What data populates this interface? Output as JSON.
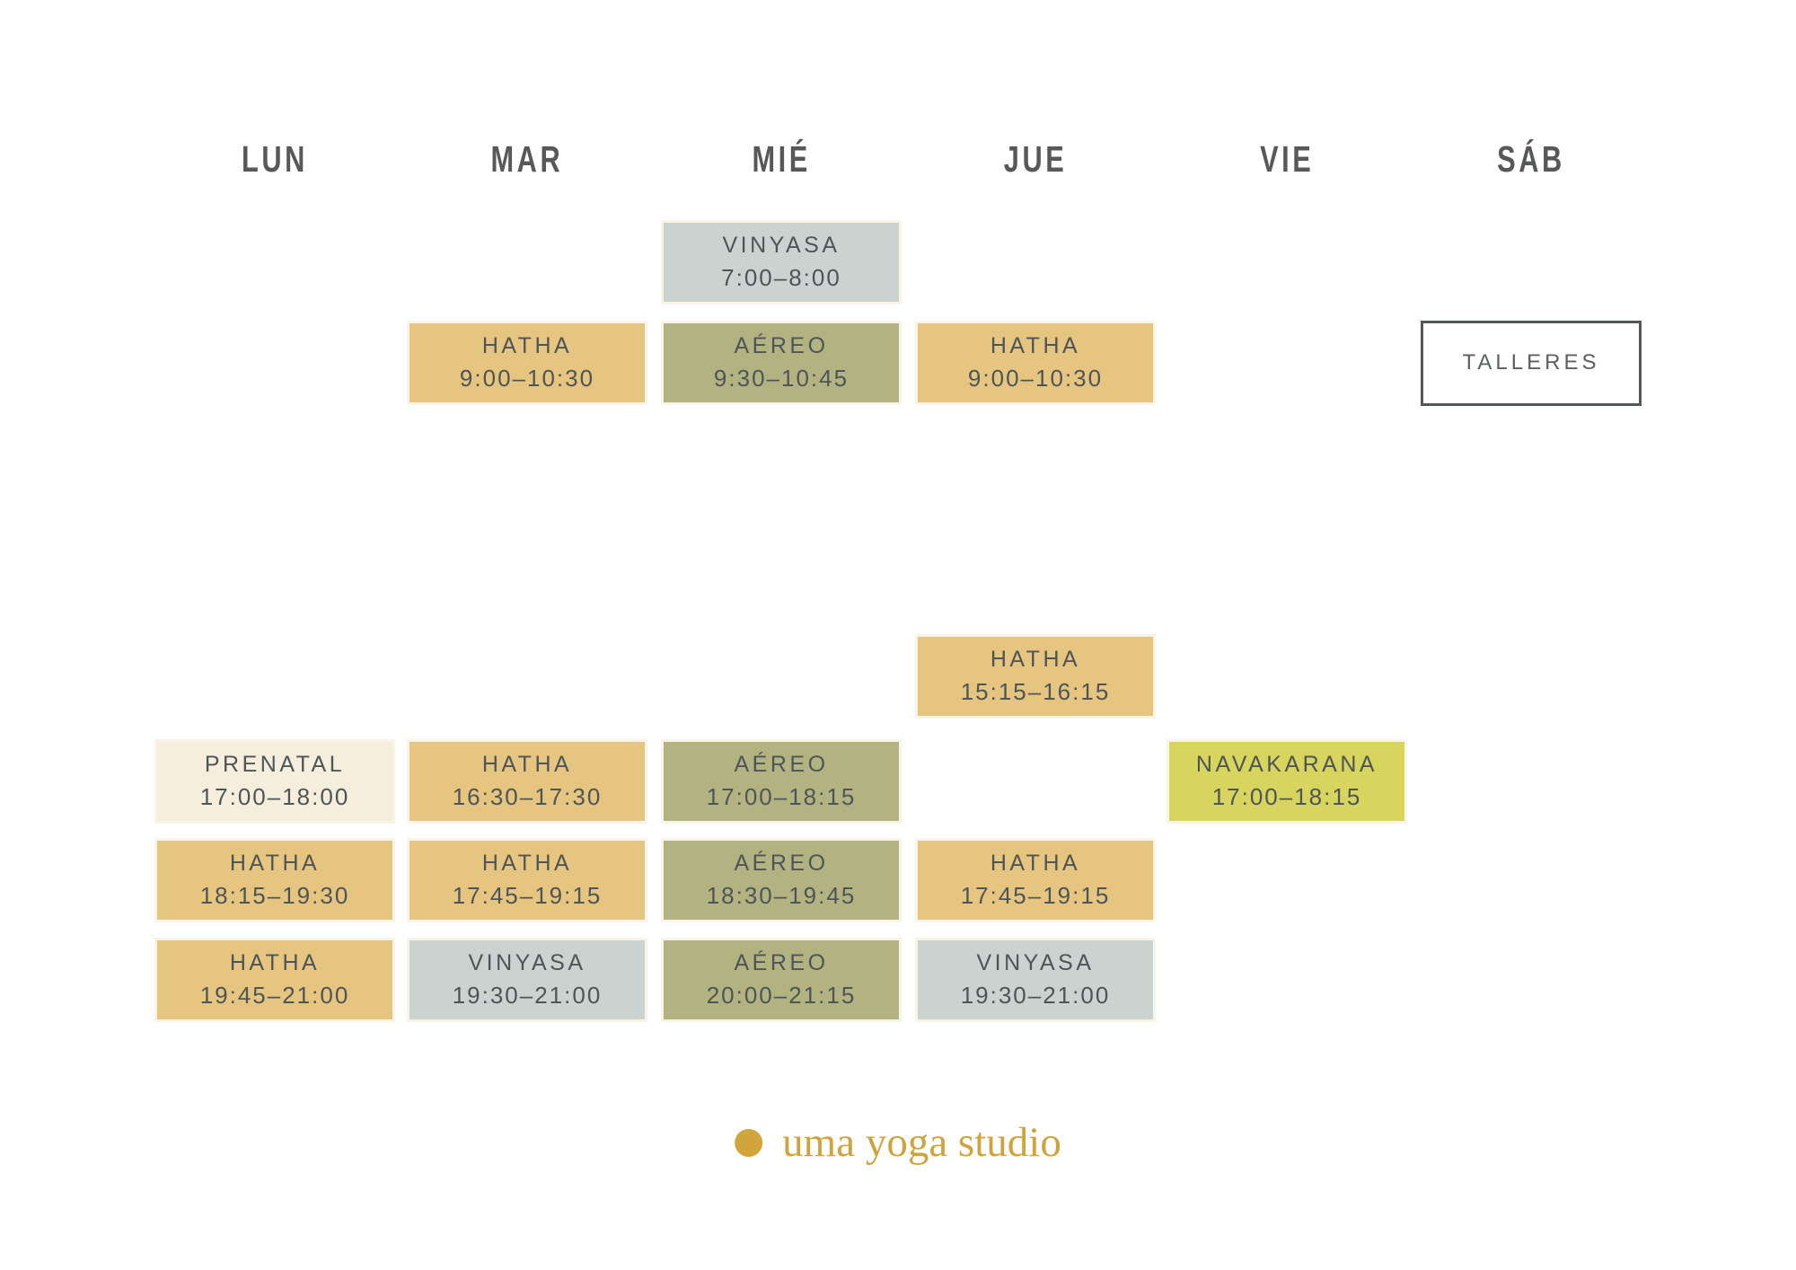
{
  "page": {
    "background": "#ffffff"
  },
  "palette": {
    "gold": "#e5c57f",
    "olive": "#b2b381",
    "bluegray": "#cbd3d1",
    "cream": "#f6eedc",
    "chartreuse": "#d7d55e",
    "outline": "#ffffff",
    "outline_border": "#54575a",
    "block_text": "#4e5558",
    "header_text": "#57585a",
    "logo_gold": "#d2a43c"
  },
  "days": [
    {
      "label": "LUN",
      "key": "lun"
    },
    {
      "label": "MAR",
      "key": "mar"
    },
    {
      "label": "MIÉ",
      "key": "mie"
    },
    {
      "label": "JUE",
      "key": "jue"
    },
    {
      "label": "VIE",
      "key": "vie"
    },
    {
      "label": "SÁB",
      "key": "sab"
    }
  ],
  "schedule": {
    "blocks": [
      {
        "day": "mie",
        "slot": "0700",
        "label": "VINYASA",
        "time": "7:00–8:00",
        "color": "bluegray"
      },
      {
        "day": "mar",
        "slot": "0900",
        "label": "HATHA",
        "time": "9:00–10:30",
        "color": "gold"
      },
      {
        "day": "mie",
        "slot": "0900",
        "label": "AÉREO",
        "time": "9:30–10:45",
        "color": "olive"
      },
      {
        "day": "jue",
        "slot": "0900",
        "label": "HATHA",
        "time": "9:00–10:30",
        "color": "gold"
      },
      {
        "day": "sab",
        "slot": "0900",
        "label": "TALLERES",
        "time": "",
        "color": "outline"
      },
      {
        "day": "jue",
        "slot": "1515",
        "label": "HATHA",
        "time": "15:15–16:15",
        "color": "gold"
      },
      {
        "day": "lun",
        "slot": "1700",
        "label": "PRENATAL",
        "time": "17:00–18:00",
        "color": "cream"
      },
      {
        "day": "mar",
        "slot": "1700",
        "label": "HATHA",
        "time": "16:30–17:30",
        "color": "gold"
      },
      {
        "day": "mie",
        "slot": "1700",
        "label": "AÉREO",
        "time": "17:00–18:15",
        "color": "olive"
      },
      {
        "day": "vie",
        "slot": "1700",
        "label": "NAVAKARANA",
        "time": "17:00–18:15",
        "color": "chartreuse"
      },
      {
        "day": "lun",
        "slot": "1815",
        "label": "HATHA",
        "time": "18:15–19:30",
        "color": "gold"
      },
      {
        "day": "mar",
        "slot": "1815",
        "label": "HATHA",
        "time": "17:45–19:15",
        "color": "gold"
      },
      {
        "day": "mie",
        "slot": "1815",
        "label": "AÉREO",
        "time": "18:30–19:45",
        "color": "olive"
      },
      {
        "day": "jue",
        "slot": "1815",
        "label": "HATHA",
        "time": "17:45–19:15",
        "color": "gold"
      },
      {
        "day": "lun",
        "slot": "1945",
        "label": "HATHA",
        "time": "19:45–21:00",
        "color": "gold"
      },
      {
        "day": "mar",
        "slot": "1945",
        "label": "VINYASA",
        "time": "19:30–21:00",
        "color": "bluegray"
      },
      {
        "day": "mie",
        "slot": "1945",
        "label": "AÉREO",
        "time": "20:00–21:15",
        "color": "olive"
      },
      {
        "day": "jue",
        "slot": "1945",
        "label": "VINYASA",
        "time": "19:30–21:00",
        "color": "bluegray"
      }
    ]
  },
  "footer": {
    "logo_text": "uma yoga studio"
  }
}
